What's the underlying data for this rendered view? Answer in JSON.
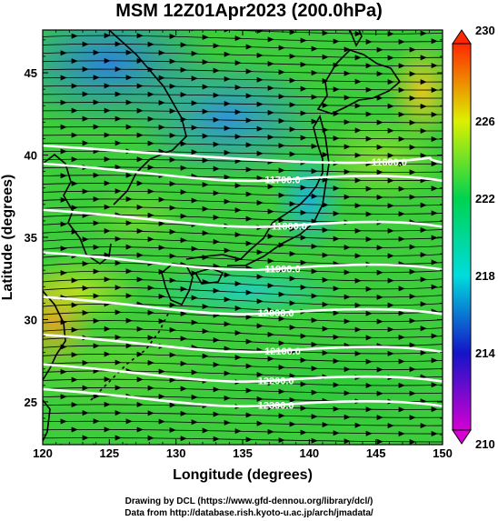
{
  "title": "MSM 12Z01Apr2023 (200.0hPa)",
  "map": {
    "xlabel": "Longitude (degrees)",
    "ylabel": "Latitude  (degrees)",
    "xlim": [
      120,
      150
    ],
    "ylim": [
      22.4,
      47.6
    ],
    "xticks": [
      "120",
      "125",
      "130",
      "135",
      "140",
      "145",
      "150"
    ],
    "yticks": [
      "25",
      "30",
      "35",
      "40",
      "45"
    ],
    "contour_labels": [
      {
        "text": "11600.0",
        "lon": 146.0,
        "lat": 39.6
      },
      {
        "text": "11700.0",
        "lon": 138.0,
        "lat": 38.5
      },
      {
        "text": "11800.0",
        "lon": 138.5,
        "lat": 35.7
      },
      {
        "text": "11900.0",
        "lon": 138.0,
        "lat": 33.1
      },
      {
        "text": "12000.0",
        "lon": 137.5,
        "lat": 30.4
      },
      {
        "text": "12100.0",
        "lon": 138.0,
        "lat": 28.1
      },
      {
        "text": "12200.0",
        "lon": 137.5,
        "lat": 26.3
      },
      {
        "text": "12300.0",
        "lon": 137.5,
        "lat": 24.8
      }
    ]
  },
  "colorbar": {
    "ticks": [
      "210",
      "214",
      "218",
      "222",
      "226",
      "230"
    ],
    "min": 210,
    "max": 230,
    "colors": [
      "#d400d4",
      "#1414c8",
      "#00dcdc",
      "#00d250",
      "#dcf000",
      "#ff2800"
    ]
  },
  "credits": [
    "Drawing by DCL (https://www.gfd-dennou.org/library/dcl/)",
    "Data from http://database.rish.kyoto-u.ac.jp/arch/jmadata/"
  ]
}
